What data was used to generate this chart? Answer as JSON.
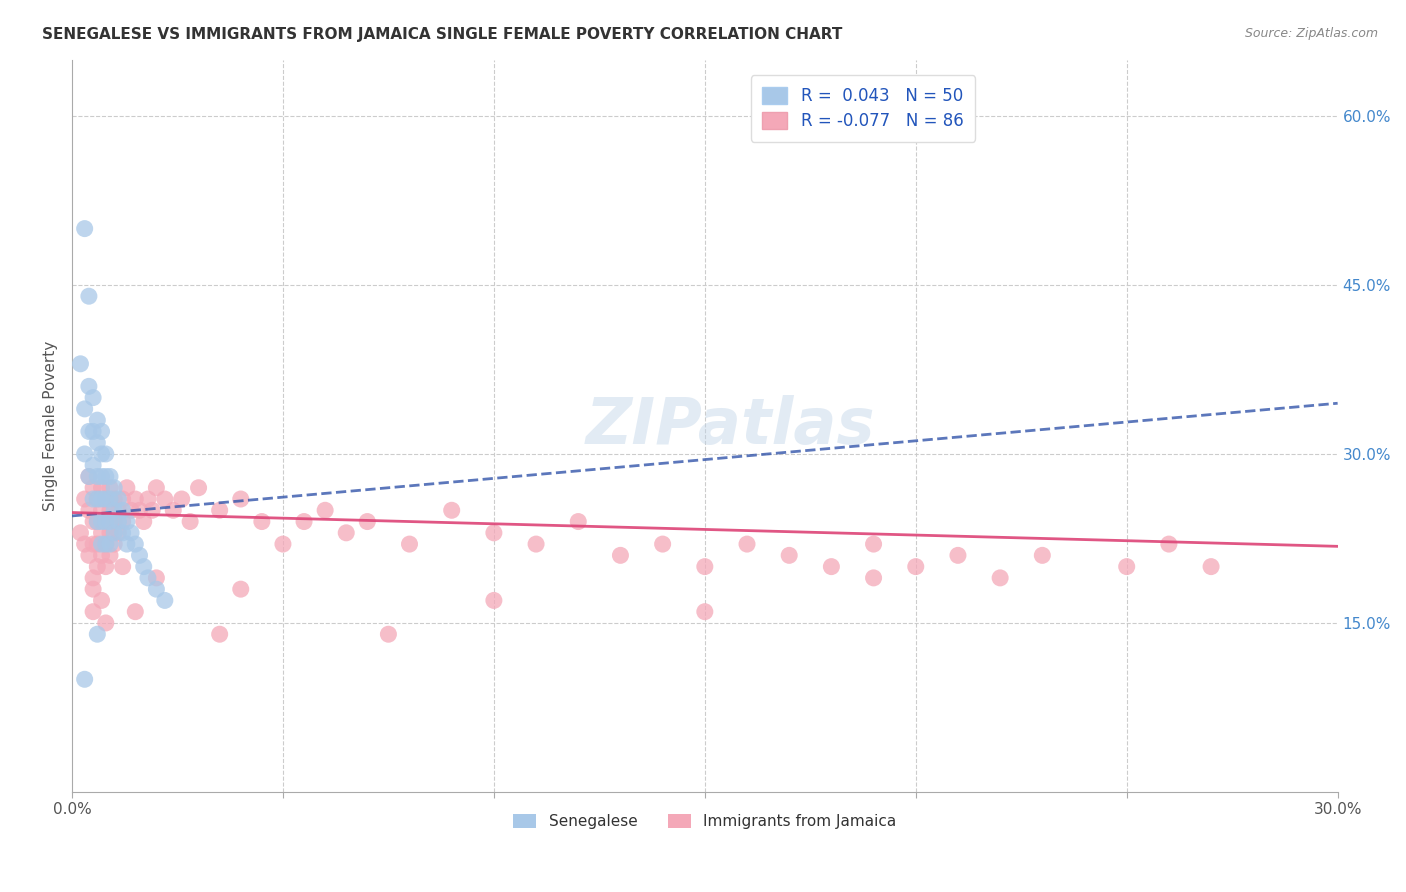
{
  "title": "SENEGALESE VS IMMIGRANTS FROM JAMAICA SINGLE FEMALE POVERTY CORRELATION CHART",
  "source": "Source: ZipAtlas.com",
  "ylabel": "Single Female Poverty",
  "x_min": 0.0,
  "x_max": 0.3,
  "y_min": 0.0,
  "y_max": 0.65,
  "x_ticks": [
    0.0,
    0.05,
    0.1,
    0.15,
    0.2,
    0.25,
    0.3
  ],
  "y_ticks_right": [
    0.15,
    0.3,
    0.45,
    0.6
  ],
  "y_tick_labels_right": [
    "15.0%",
    "30.0%",
    "45.0%",
    "60.0%"
  ],
  "grid_color": "#cccccc",
  "background_color": "#ffffff",
  "blue_color": "#a8c8e8",
  "pink_color": "#f4a8b8",
  "blue_line_color": "#3355aa",
  "pink_line_color": "#dd4477",
  "legend_R1": "0.043",
  "legend_N1": "50",
  "legend_R2": "-0.077",
  "legend_N2": "86",
  "watermark": "ZIPatlas",
  "senegalese_x": [
    0.002,
    0.003,
    0.003,
    0.004,
    0.004,
    0.004,
    0.005,
    0.005,
    0.005,
    0.005,
    0.006,
    0.006,
    0.006,
    0.006,
    0.006,
    0.007,
    0.007,
    0.007,
    0.007,
    0.007,
    0.007,
    0.008,
    0.008,
    0.008,
    0.008,
    0.008,
    0.009,
    0.009,
    0.009,
    0.009,
    0.01,
    0.01,
    0.01,
    0.011,
    0.011,
    0.012,
    0.012,
    0.013,
    0.013,
    0.014,
    0.015,
    0.016,
    0.017,
    0.018,
    0.02,
    0.022,
    0.003,
    0.004,
    0.006,
    0.003
  ],
  "senegalese_y": [
    0.38,
    0.34,
    0.3,
    0.36,
    0.32,
    0.28,
    0.35,
    0.32,
    0.29,
    0.26,
    0.33,
    0.31,
    0.28,
    0.26,
    0.24,
    0.32,
    0.3,
    0.28,
    0.26,
    0.24,
    0.22,
    0.3,
    0.28,
    0.26,
    0.24,
    0.22,
    0.28,
    0.26,
    0.24,
    0.22,
    0.27,
    0.25,
    0.23,
    0.26,
    0.24,
    0.25,
    0.23,
    0.24,
    0.22,
    0.23,
    0.22,
    0.21,
    0.2,
    0.19,
    0.18,
    0.17,
    0.5,
    0.44,
    0.14,
    0.1
  ],
  "jamaica_x": [
    0.002,
    0.003,
    0.003,
    0.004,
    0.004,
    0.004,
    0.005,
    0.005,
    0.005,
    0.005,
    0.006,
    0.006,
    0.006,
    0.006,
    0.007,
    0.007,
    0.007,
    0.007,
    0.008,
    0.008,
    0.008,
    0.008,
    0.009,
    0.009,
    0.009,
    0.009,
    0.01,
    0.01,
    0.01,
    0.011,
    0.011,
    0.012,
    0.012,
    0.013,
    0.014,
    0.015,
    0.016,
    0.017,
    0.018,
    0.019,
    0.02,
    0.022,
    0.024,
    0.026,
    0.028,
    0.03,
    0.035,
    0.04,
    0.045,
    0.05,
    0.055,
    0.06,
    0.065,
    0.07,
    0.08,
    0.09,
    0.1,
    0.11,
    0.12,
    0.13,
    0.14,
    0.15,
    0.16,
    0.17,
    0.18,
    0.19,
    0.2,
    0.21,
    0.22,
    0.23,
    0.25,
    0.26,
    0.27,
    0.005,
    0.007,
    0.012,
    0.02,
    0.04,
    0.1,
    0.15,
    0.19,
    0.005,
    0.008,
    0.015,
    0.035,
    0.075
  ],
  "jamaica_y": [
    0.23,
    0.26,
    0.22,
    0.28,
    0.25,
    0.21,
    0.27,
    0.24,
    0.22,
    0.19,
    0.26,
    0.24,
    0.22,
    0.2,
    0.27,
    0.25,
    0.23,
    0.21,
    0.26,
    0.24,
    0.22,
    0.2,
    0.27,
    0.25,
    0.23,
    0.21,
    0.26,
    0.24,
    0.22,
    0.25,
    0.23,
    0.26,
    0.24,
    0.27,
    0.25,
    0.26,
    0.25,
    0.24,
    0.26,
    0.25,
    0.27,
    0.26,
    0.25,
    0.26,
    0.24,
    0.27,
    0.25,
    0.26,
    0.24,
    0.22,
    0.24,
    0.25,
    0.23,
    0.24,
    0.22,
    0.25,
    0.23,
    0.22,
    0.24,
    0.21,
    0.22,
    0.2,
    0.22,
    0.21,
    0.2,
    0.22,
    0.2,
    0.21,
    0.19,
    0.21,
    0.2,
    0.22,
    0.2,
    0.18,
    0.17,
    0.2,
    0.19,
    0.18,
    0.17,
    0.16,
    0.19,
    0.16,
    0.15,
    0.16,
    0.14,
    0.14
  ],
  "blue_trend_x": [
    0.0,
    0.3
  ],
  "blue_trend_y": [
    0.245,
    0.345
  ],
  "pink_trend_x": [
    0.0,
    0.3
  ],
  "pink_trend_y": [
    0.248,
    0.218
  ]
}
